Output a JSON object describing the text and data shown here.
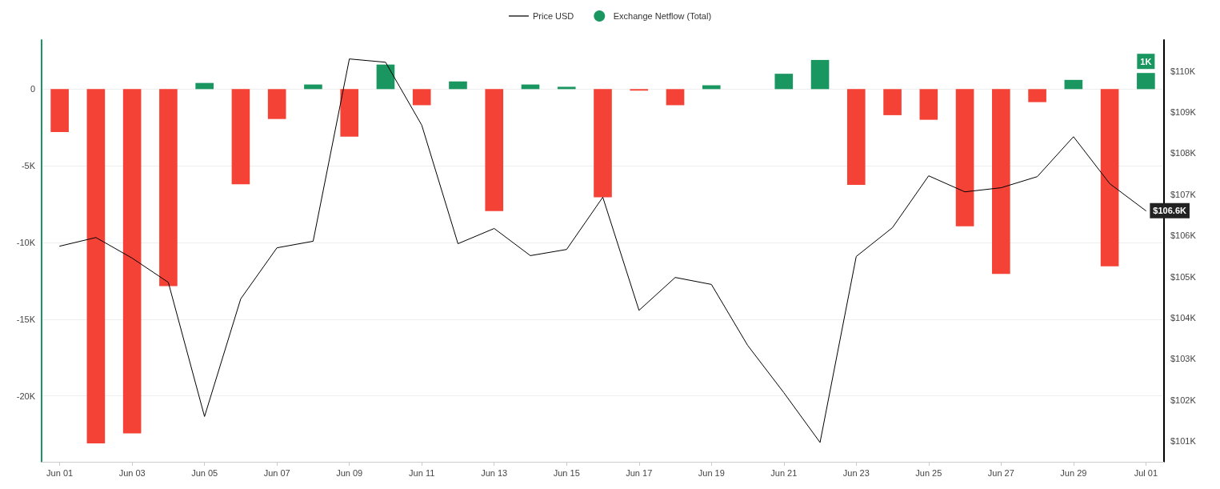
{
  "chart_data": {
    "type": "bar",
    "categories": [
      "Jun 01",
      null,
      "Jun 03",
      null,
      "Jun 05",
      null,
      "Jun 07",
      null,
      "Jun 09",
      null,
      "Jun 11",
      null,
      "Jun 13",
      null,
      "Jun 15",
      null,
      "Jun 17",
      null,
      "Jun 19",
      null,
      "Jun 21",
      null,
      "Jun 23",
      null,
      "Jun 25",
      null,
      "Jun 27",
      null,
      "Jun 29",
      null,
      "Jul 01"
    ],
    "series": [
      {
        "name": "Price USD",
        "type": "line",
        "axis": "y2",
        "color": "#000000",
        "values": [
          105.74,
          105.95,
          105.45,
          104.86,
          101.6,
          104.46,
          105.7,
          105.86,
          110.29,
          110.21,
          108.68,
          105.8,
          106.17,
          105.51,
          105.66,
          106.93,
          104.18,
          104.98,
          104.81,
          103.33,
          102.18,
          100.97,
          105.49,
          106.19,
          107.45,
          107.06,
          107.16,
          107.43,
          108.4,
          107.26,
          106.6
        ],
        "value_labels": [
          null,
          null,
          null,
          null,
          null,
          null,
          null,
          null,
          null,
          null,
          null,
          null,
          null,
          null,
          null,
          null,
          null,
          null,
          null,
          null,
          null,
          null,
          null,
          null,
          null,
          null,
          null,
          null,
          null,
          null,
          "$106.6K"
        ]
      },
      {
        "name": "Exchange Netflow (Total)",
        "color": "#1a9660",
        "values": [
          -2.8,
          -23.1,
          -22.45,
          -12.85,
          0.4,
          -6.2,
          -1.95,
          0.3,
          -3.1,
          1.6,
          -1.05,
          0.5,
          -7.95,
          0.3,
          0.15,
          -7.05,
          -0.1,
          -1.05,
          0.25,
          0,
          1.0,
          1.9,
          -6.25,
          -1.7,
          -2.0,
          -8.95,
          -12.05,
          -0.85,
          0.6,
          -11.55,
          1.05
        ],
        "colors": [
          "#f44336",
          "#f44336",
          "#f44336",
          "#f44336",
          "#1a9660",
          "#f44336",
          "#f44336",
          "#1a9660",
          "#f44336",
          "#1a9660",
          "#f44336",
          "#1a9660",
          "#f44336",
          "#1a9660",
          "#1a9660",
          "#f44336",
          "#f44336",
          "#f44336",
          "#1a9660",
          "#1a9660",
          "#1a9660",
          "#1a9660",
          "#f44336",
          "#f44336",
          "#f44336",
          "#f44336",
          "#f44336",
          "#f44336",
          "#1a9660",
          "#f44336",
          "#1a9660"
        ],
        "value_labels": [
          null,
          null,
          null,
          null,
          null,
          null,
          null,
          null,
          null,
          null,
          null,
          null,
          null,
          null,
          null,
          null,
          null,
          null,
          null,
          null,
          null,
          null,
          null,
          null,
          null,
          null,
          null,
          null,
          null,
          null,
          "1K"
        ]
      }
    ],
    "ylim": [
      -24.3,
      3.2
    ],
    "yticks": [
      {
        "value": -20,
        "label": "-20K"
      },
      {
        "value": -15,
        "label": "-15K"
      },
      {
        "value": -10,
        "label": "-10K"
      },
      {
        "value": -5,
        "label": "-5K"
      },
      0
    ],
    "y2lim": [
      100.5,
      110.75
    ],
    "y2ticks": [
      {
        "value": 101,
        "label": "$101K"
      },
      {
        "value": 102,
        "label": "$102K"
      },
      {
        "value": 103,
        "label": "$103K"
      },
      {
        "value": 104,
        "label": "$104K"
      },
      {
        "value": 105,
        "label": "$105K"
      },
      {
        "value": 106,
        "label": "$106K"
      },
      {
        "value": 107,
        "label": "$107K"
      },
      {
        "value": 108,
        "label": "$108K"
      },
      {
        "value": 109,
        "label": "$109K"
      },
      {
        "value": 110,
        "label": "$110K"
      }
    ],
    "grid": "y",
    "legend": "top",
    "marker": "none",
    "line_style": "solid"
  }
}
